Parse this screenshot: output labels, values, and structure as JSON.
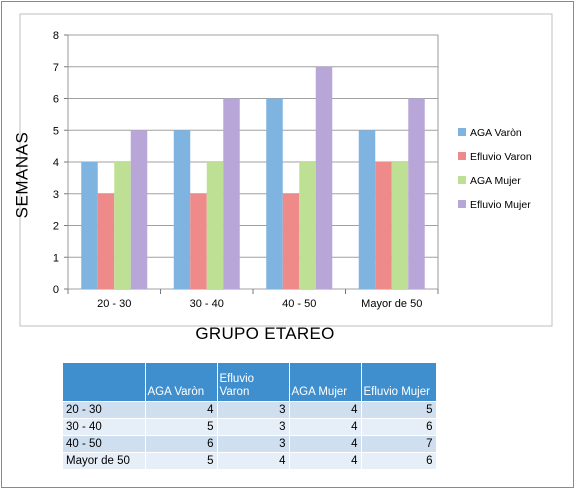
{
  "chart_data": {
    "type": "bar",
    "categories": [
      "20 - 30",
      "30 - 40",
      "40 - 50",
      "Mayor de 50"
    ],
    "series": [
      {
        "name": "AGA Varòn",
        "values": [
          4,
          5,
          6,
          5
        ],
        "color": "#7fb3e0"
      },
      {
        "name": "Efluvio Varon",
        "values": [
          3,
          3,
          3,
          4
        ],
        "color": "#ee8a8a"
      },
      {
        "name": "AGA Mujer",
        "values": [
          4,
          4,
          4,
          4
        ],
        "color": "#bde094"
      },
      {
        "name": "Efluvio Mujer",
        "values": [
          5,
          6,
          7,
          6
        ],
        "color": "#b9a6d8"
      }
    ],
    "title": "",
    "xlabel": "GRUPO ETAREO",
    "ylabel": "SEMANAS",
    "ylim": [
      0,
      8
    ],
    "yticks": [
      "0",
      "1",
      "2",
      "3",
      "4",
      "5",
      "6",
      "7",
      "8"
    ],
    "grid": true,
    "legend": "right"
  },
  "table": {
    "headers": [
      "",
      "AGA Varòn",
      "Efluvio Varon",
      "AGA Mujer",
      "Efluvio Mujer"
    ],
    "rows": [
      [
        "20 - 30",
        "4",
        "3",
        "4",
        "5"
      ],
      [
        "30 - 40",
        "5",
        "3",
        "4",
        "6"
      ],
      [
        "40 - 50",
        "6",
        "3",
        "4",
        "7"
      ],
      [
        "Mayor de 50",
        "5",
        "4",
        "4",
        "6"
      ]
    ]
  }
}
